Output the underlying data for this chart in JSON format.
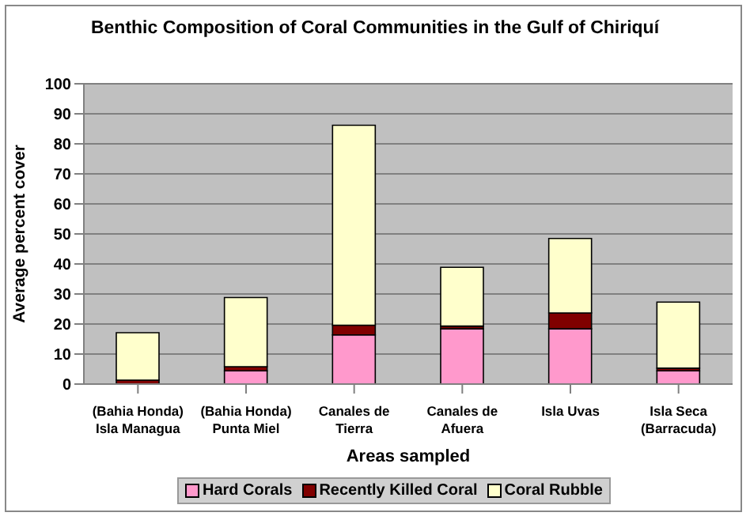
{
  "chart_data": {
    "type": "bar",
    "title": "Benthic Composition of Coral Communities in the Gulf of Chiriquí",
    "xlabel": "Areas sampled",
    "ylabel": "Average percent cover",
    "categories": [
      "(Bahia Honda)\nIsla Managua",
      "(Bahia Honda)\nPunta Miel",
      "Canales de\nTierra",
      "Canales de\nAfuera",
      "Isla Uvas",
      "Isla Seca\n(Barracuda)"
    ],
    "stacked": true,
    "series": [
      {
        "name": "Hard Corals",
        "color": "#ff99cc",
        "values": [
          null,
          4.4,
          16.4,
          18.4,
          18.4,
          4.4
        ]
      },
      {
        "name": "Recently Killed Coral",
        "color": "#800000",
        "values": [
          1.3,
          1.4,
          3.2,
          0.9,
          5.3,
          0.9
        ]
      },
      {
        "name": "Coral Rubble",
        "color": "#ffffcc",
        "values": [
          15.8,
          23,
          66.6,
          19.6,
          24.8,
          22
        ]
      }
    ],
    "ylim": [
      0,
      100
    ],
    "yticks": [
      0,
      10,
      20,
      30,
      40,
      50,
      60,
      70,
      80,
      90,
      100
    ],
    "grid": "y",
    "legend": "bottom"
  }
}
